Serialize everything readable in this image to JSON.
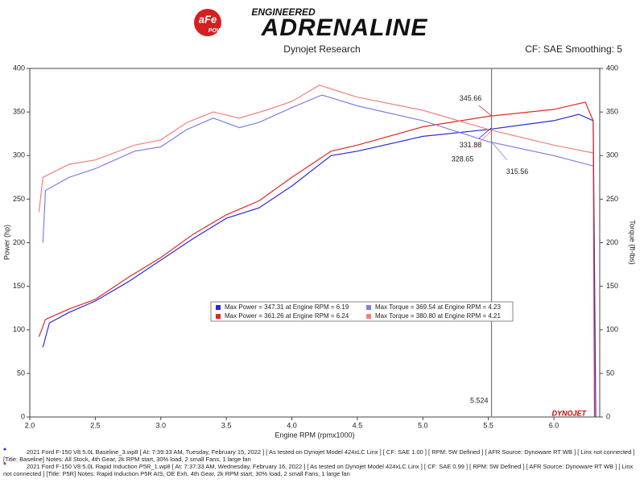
{
  "header": {
    "brand": "aFe",
    "brand_sub": "POWER",
    "tagline": "ENGINEERED",
    "headline": "ADRENALINE"
  },
  "chart_data": {
    "type": "line",
    "title": "Dynojet Research",
    "subtitle": "CF: SAE Smoothing: 5",
    "x_label": "Engine RPM (rpmx1000)",
    "y_label": "Power (hp)",
    "y2_label": "Torque (ft-lbs)",
    "xlim": [
      2.0,
      6.35
    ],
    "ylim": [
      0,
      400
    ],
    "y2lim": [
      0,
      400
    ],
    "xticks": [
      {
        "value": 2,
        "label": "2.0"
      },
      2.5,
      {
        "value": 3,
        "label": "3.0"
      },
      3.5,
      {
        "value": 4,
        "label": "4.0"
      },
      4.5,
      {
        "value": 5,
        "label": "5.0"
      },
      5.5,
      {
        "value": 6,
        "label": "6.0"
      }
    ],
    "yticks": [
      0,
      50,
      100,
      150,
      200,
      250,
      300,
      350,
      400
    ],
    "y2ticks": [
      0,
      50,
      100,
      150,
      200,
      250,
      300,
      350,
      400
    ],
    "grid": false,
    "series": [
      {
        "name": "Baseline Power",
        "color": "#2b2bd6",
        "axis": "y",
        "x": [
          2.1,
          2.15,
          2.3,
          2.5,
          2.75,
          3.0,
          3.25,
          3.5,
          3.75,
          4.0,
          4.3,
          4.5,
          5.0,
          5.5,
          6.0,
          6.19,
          6.3,
          6.32
        ],
        "values": [
          80,
          108,
          120,
          133,
          155,
          180,
          205,
          228,
          240,
          265,
          300,
          305,
          322,
          330,
          340,
          347.31,
          340,
          0
        ]
      },
      {
        "name": "P5R Power",
        "color": "#e02828",
        "axis": "y",
        "x": [
          2.07,
          2.12,
          2.3,
          2.5,
          2.75,
          3.0,
          3.25,
          3.5,
          3.75,
          4.0,
          4.3,
          4.5,
          5.0,
          5.5,
          6.0,
          6.24,
          6.3,
          6.31
        ],
        "values": [
          92,
          112,
          124,
          135,
          160,
          183,
          210,
          232,
          248,
          275,
          305,
          312,
          333,
          345,
          353,
          361.26,
          340,
          0
        ]
      },
      {
        "name": "Baseline Torque",
        "color": "#7f7fe6",
        "axis": "y2",
        "x": [
          2.1,
          2.12,
          2.3,
          2.5,
          2.8,
          3.0,
          3.2,
          3.4,
          3.6,
          3.75,
          4.0,
          4.23,
          4.5,
          5.0,
          5.5,
          6.0,
          6.3
        ],
        "values": [
          200,
          260,
          275,
          285,
          305,
          310,
          330,
          343,
          332,
          338,
          355,
          369.54,
          357,
          340,
          316,
          300,
          288
        ]
      },
      {
        "name": "P5R Torque",
        "color": "#f08080",
        "axis": "y2",
        "x": [
          2.07,
          2.1,
          2.3,
          2.5,
          2.8,
          3.0,
          3.2,
          3.4,
          3.6,
          3.8,
          4.0,
          4.21,
          4.5,
          5.0,
          5.5,
          6.0,
          6.3
        ],
        "values": [
          235,
          275,
          290,
          295,
          312,
          318,
          338,
          350,
          343,
          352,
          362,
          380.8,
          367,
          352,
          330,
          312,
          303
        ]
      }
    ],
    "cursor": 5.524,
    "cursor_readouts": [
      {
        "value": 345.66,
        "color": "#e02828"
      },
      {
        "value": 331.88,
        "color": "#2b2bd6"
      },
      {
        "value": 328.65,
        "color": "#f08080"
      },
      {
        "value": 315.56,
        "color": "#7f7fe6"
      }
    ],
    "legend": [
      {
        "text": "Max Power = 347.31 at Engine RPM = 6.19",
        "color": "#2b2bd6"
      },
      {
        "text": "Max Power = 361.26 at Engine RPM = 6.24",
        "color": "#e02828"
      },
      {
        "text": "Max Torque = 369.54 at Engine RPM = 4.23",
        "color": "#7f7fe6"
      },
      {
        "text": "Max Torque = 380.80 at Engine RPM = 4.21",
        "color": "#f08080"
      }
    ],
    "watermark": "DYNOJET"
  },
  "footer": [
    {
      "color": "#2b2bd6",
      "lines": [
        "2021 Ford F-150 V8 5.0L Baseline_3.wp8 [ At: 7:39:33 AM, Tuesday, February 15, 2022 ] [ As tested on Dynojet Model 424xLC Linx ] [ CF: SAE 1.00 ] [ RPM: 5W Defined ] [ AFR Source: Dynoware RT WB ] [ Linx not connected ]",
        "[Title: Baseline]  Notes: All Stock, 4th Gear, 2k RPM start, 30% load, 2 small Fans, 1 large fan"
      ]
    },
    {
      "color": "#e02828",
      "lines": [
        "2021 Ford F-150 V8 5.0L Rapid Induction P5R_1.wp8 [ At: 7:37:33 AM, Wednesday, February 16, 2022 ] [ As tested on Dynojet Model 424xLC Linx ] [ CF: SAE 0.99 ] [ RPM: 5W Defined ] [ AFR Source: Dynoware RT WB ] [ Linx",
        "not connected ] [Title: P5R]  Notes: Rapid Induction P5R AIS, OE Exh, 4th Gear, 2k RPM start, 30% load, 2 small Fans, 1 large fan"
      ]
    }
  ]
}
